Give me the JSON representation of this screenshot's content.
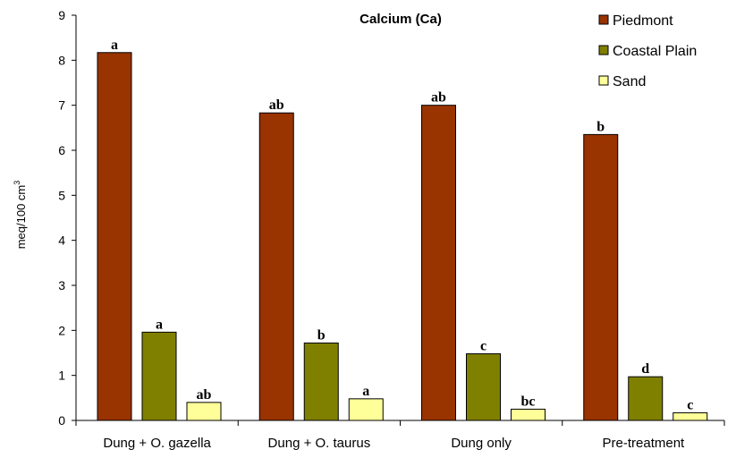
{
  "chart_data": {
    "type": "bar",
    "title": "Calcium (Ca)",
    "ylabel": "meq/100 cm",
    "ylabel_sup": "3",
    "xlabel": "",
    "ylim": [
      0,
      9
    ],
    "yticks": [
      0,
      1,
      2,
      3,
      4,
      5,
      6,
      7,
      8,
      9
    ],
    "legend_position": "top-right",
    "grid": false,
    "categories": [
      "Dung + O. gazella",
      "Dung + O. taurus",
      "Dung only",
      "Pre-treatment"
    ],
    "series": [
      {
        "name": "Piedmont",
        "color": "#993300",
        "values": [
          8.17,
          6.83,
          7.0,
          6.35
        ],
        "labels": [
          "a",
          "ab",
          "ab",
          "b"
        ]
      },
      {
        "name": "Coastal Plain",
        "color": "#808000",
        "values": [
          1.96,
          1.72,
          1.48,
          0.97
        ],
        "labels": [
          "a",
          "b",
          "c",
          "d"
        ]
      },
      {
        "name": "Sand",
        "color": "#ffff99",
        "values": [
          0.4,
          0.48,
          0.25,
          0.17
        ],
        "labels": [
          "ab",
          "a",
          "bc",
          "c"
        ]
      }
    ]
  }
}
